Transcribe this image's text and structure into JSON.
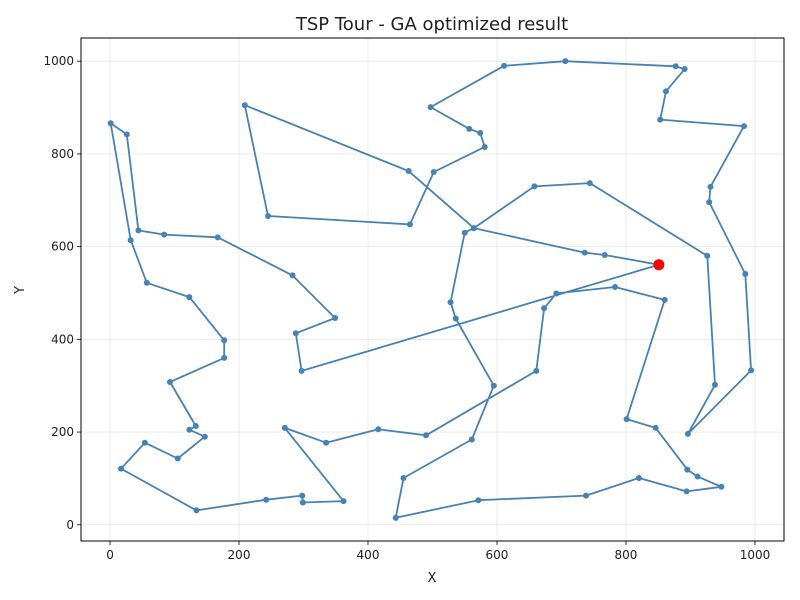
{
  "chart_data": {
    "type": "line",
    "title": "TSP Tour - GA optimized result",
    "xlabel": "X",
    "ylabel": "Y",
    "xlim": [
      -45,
      1045
    ],
    "ylim": [
      -35,
      1050
    ],
    "xticks": [
      0,
      200,
      400,
      600,
      800,
      1000
    ],
    "yticks": [
      0,
      200,
      400,
      600,
      800,
      1000
    ],
    "grid": true,
    "colors": {
      "tour": "#4682b4",
      "start": "#ff0000"
    },
    "start": {
      "x": 851,
      "y": 561
    },
    "tour": [
      {
        "x": 851,
        "y": 561
      },
      {
        "x": 297,
        "y": 332
      },
      {
        "x": 288,
        "y": 413
      },
      {
        "x": 349,
        "y": 446
      },
      {
        "x": 283,
        "y": 538
      },
      {
        "x": 167,
        "y": 620
      },
      {
        "x": 84,
        "y": 626
      },
      {
        "x": 44,
        "y": 635
      },
      {
        "x": 26,
        "y": 842
      },
      {
        "x": 1,
        "y": 866
      },
      {
        "x": 32,
        "y": 614
      },
      {
        "x": 57,
        "y": 522
      },
      {
        "x": 123,
        "y": 491
      },
      {
        "x": 177,
        "y": 398
      },
      {
        "x": 177,
        "y": 360
      },
      {
        "x": 93,
        "y": 308
      },
      {
        "x": 133,
        "y": 213
      },
      {
        "x": 123,
        "y": 205
      },
      {
        "x": 147,
        "y": 190
      },
      {
        "x": 105,
        "y": 143
      },
      {
        "x": 54,
        "y": 177
      },
      {
        "x": 17,
        "y": 121
      },
      {
        "x": 134,
        "y": 31
      },
      {
        "x": 242,
        "y": 54
      },
      {
        "x": 298,
        "y": 63
      },
      {
        "x": 299,
        "y": 48
      },
      {
        "x": 362,
        "y": 51
      },
      {
        "x": 271,
        "y": 209
      },
      {
        "x": 335,
        "y": 177
      },
      {
        "x": 416,
        "y": 206
      },
      {
        "x": 490,
        "y": 193
      },
      {
        "x": 661,
        "y": 332
      },
      {
        "x": 673,
        "y": 467
      },
      {
        "x": 692,
        "y": 499
      },
      {
        "x": 783,
        "y": 513
      },
      {
        "x": 860,
        "y": 485
      },
      {
        "x": 801,
        "y": 228
      },
      {
        "x": 846,
        "y": 209
      },
      {
        "x": 895,
        "y": 119
      },
      {
        "x": 911,
        "y": 104
      },
      {
        "x": 948,
        "y": 82
      },
      {
        "x": 894,
        "y": 72
      },
      {
        "x": 820,
        "y": 101
      },
      {
        "x": 738,
        "y": 63
      },
      {
        "x": 571,
        "y": 53
      },
      {
        "x": 443,
        "y": 15
      },
      {
        "x": 455,
        "y": 101
      },
      {
        "x": 561,
        "y": 184
      },
      {
        "x": 595,
        "y": 300
      },
      {
        "x": 536,
        "y": 445
      },
      {
        "x": 528,
        "y": 480
      },
      {
        "x": 550,
        "y": 630
      },
      {
        "x": 564,
        "y": 640
      },
      {
        "x": 658,
        "y": 730
      },
      {
        "x": 744,
        "y": 737
      },
      {
        "x": 926,
        "y": 580
      },
      {
        "x": 938,
        "y": 302
      },
      {
        "x": 896,
        "y": 196
      },
      {
        "x": 994,
        "y": 333
      },
      {
        "x": 985,
        "y": 541
      },
      {
        "x": 929,
        "y": 696
      },
      {
        "x": 931,
        "y": 729
      },
      {
        "x": 983,
        "y": 860
      },
      {
        "x": 853,
        "y": 874
      },
      {
        "x": 862,
        "y": 935
      },
      {
        "x": 891,
        "y": 983
      },
      {
        "x": 877,
        "y": 989
      },
      {
        "x": 706,
        "y": 1000
      },
      {
        "x": 611,
        "y": 990
      },
      {
        "x": 497,
        "y": 901
      },
      {
        "x": 557,
        "y": 854
      },
      {
        "x": 574,
        "y": 845
      },
      {
        "x": 581,
        "y": 815
      },
      {
        "x": 502,
        "y": 761
      },
      {
        "x": 465,
        "y": 648
      },
      {
        "x": 245,
        "y": 666
      },
      {
        "x": 209,
        "y": 905
      },
      {
        "x": 463,
        "y": 763
      },
      {
        "x": 564,
        "y": 640
      },
      {
        "x": 736,
        "y": 587
      },
      {
        "x": 767,
        "y": 582
      },
      {
        "x": 851,
        "y": 561
      }
    ]
  }
}
